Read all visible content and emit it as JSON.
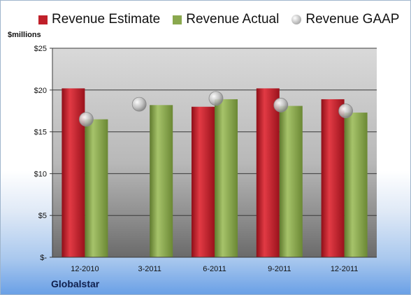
{
  "chart_data": {
    "type": "bar",
    "ylabel": "$millions",
    "company": "Globalstar",
    "categories": [
      "12-2010",
      "3-2011",
      "6-2011",
      "9-2011",
      "12-2011"
    ],
    "series": [
      {
        "name": "Revenue Estimate",
        "type": "bar",
        "color": "#c0202a",
        "values": [
          20.2,
          null,
          18.0,
          20.2,
          18.9
        ]
      },
      {
        "name": "Revenue Actual",
        "type": "bar",
        "color": "#8aa84e",
        "values": [
          16.5,
          18.2,
          18.9,
          18.1,
          17.3
        ]
      },
      {
        "name": "Revenue GAAP",
        "type": "scatter",
        "color": "#b9b9b9",
        "values": [
          16.5,
          18.3,
          19.0,
          18.2,
          17.5
        ]
      }
    ],
    "ylim": [
      0,
      25
    ],
    "yticks": [
      {
        "value": 0,
        "label": "$-"
      },
      {
        "value": 5,
        "label": "$5"
      },
      {
        "value": 10,
        "label": "$10"
      },
      {
        "value": 15,
        "label": "$15"
      },
      {
        "value": 20,
        "label": "$20"
      },
      {
        "value": 25,
        "label": "$25"
      }
    ],
    "grid": true,
    "legend": "top"
  }
}
